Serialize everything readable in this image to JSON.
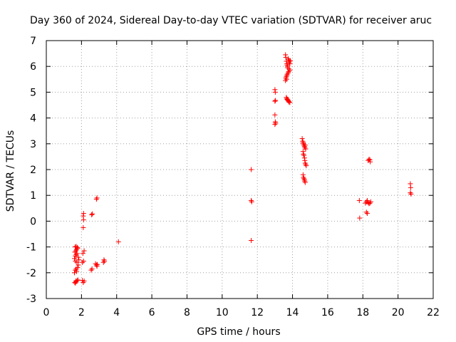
{
  "chart_data": {
    "type": "scatter",
    "title": "Day 360 of 2024, Sidereal Day-to-day VTEC variation (SDTVAR) for receiver aruc",
    "xlabel": "GPS time / hours",
    "ylabel": "SDTVAR / TECUs",
    "xlim": [
      0,
      22
    ],
    "ylim": [
      -3,
      7
    ],
    "xticks": [
      "0",
      "2",
      "4",
      "6",
      "8",
      "10",
      "12",
      "14",
      "16",
      "18",
      "20",
      "22"
    ],
    "yticks": [
      "-3",
      "-2",
      "-1",
      "0",
      "1",
      "2",
      "3",
      "4",
      "5",
      "6",
      "7"
    ],
    "grid": true,
    "marker": "+",
    "color": "#ff0000",
    "series": [
      {
        "name": "SDTVAR",
        "points": [
          [
            1.65,
            -2.4
          ],
          [
            1.7,
            -2.35
          ],
          [
            1.75,
            -2.3
          ],
          [
            1.8,
            -2.28
          ],
          [
            1.62,
            -2.38
          ],
          [
            1.68,
            -2.32
          ],
          [
            1.6,
            -2.0
          ],
          [
            1.65,
            -1.9
          ],
          [
            1.7,
            -1.85
          ],
          [
            1.72,
            -1.95
          ],
          [
            1.78,
            -1.8
          ],
          [
            1.82,
            -1.7
          ],
          [
            1.6,
            -1.45
          ],
          [
            1.65,
            -1.35
          ],
          [
            1.7,
            -1.3
          ],
          [
            1.75,
            -1.25
          ],
          [
            1.62,
            -1.2
          ],
          [
            1.68,
            -1.15
          ],
          [
            1.72,
            -1.1
          ],
          [
            1.78,
            -1.05
          ],
          [
            1.64,
            -1.0
          ],
          [
            1.7,
            -0.98
          ],
          [
            1.76,
            -1.02
          ],
          [
            1.82,
            -1.4
          ],
          [
            1.85,
            -1.5
          ],
          [
            1.66,
            -1.55
          ],
          [
            1.74,
            -1.6
          ],
          [
            2.05,
            -2.3
          ],
          [
            2.1,
            -2.38
          ],
          [
            2.15,
            -2.32
          ],
          [
            2.05,
            -1.6
          ],
          [
            2.12,
            -1.55
          ],
          [
            2.08,
            -1.25
          ],
          [
            2.15,
            -1.15
          ],
          [
            2.1,
            -0.25
          ],
          [
            2.12,
            0.05
          ],
          [
            2.1,
            0.2
          ],
          [
            2.12,
            0.3
          ],
          [
            2.55,
            -1.9
          ],
          [
            2.6,
            -1.85
          ],
          [
            2.58,
            0.25
          ],
          [
            2.62,
            0.28
          ],
          [
            2.8,
            -1.65
          ],
          [
            2.85,
            -1.7
          ],
          [
            2.88,
            -1.75
          ],
          [
            2.9,
            -1.68
          ],
          [
            2.85,
            0.85
          ],
          [
            2.88,
            0.9
          ],
          [
            3.25,
            -1.6
          ],
          [
            3.3,
            -1.55
          ],
          [
            3.28,
            -1.5
          ],
          [
            4.1,
            -0.8
          ],
          [
            11.65,
            2.0
          ],
          [
            11.65,
            0.8
          ],
          [
            11.68,
            0.75
          ],
          [
            11.65,
            -0.75
          ],
          [
            13.0,
            5.1
          ],
          [
            13.02,
            5.0
          ],
          [
            13.0,
            4.65
          ],
          [
            13.03,
            4.68
          ],
          [
            13.0,
            4.12
          ],
          [
            13.02,
            3.85
          ],
          [
            13.04,
            3.8
          ],
          [
            13.0,
            3.75
          ],
          [
            13.6,
            6.45
          ],
          [
            13.62,
            6.35
          ],
          [
            13.65,
            6.2
          ],
          [
            13.68,
            6.1
          ],
          [
            13.7,
            6.05
          ],
          [
            13.72,
            6.0
          ],
          [
            13.75,
            6.3
          ],
          [
            13.78,
            6.25
          ],
          [
            13.8,
            6.15
          ],
          [
            13.82,
            6.2
          ],
          [
            13.85,
            6.1
          ],
          [
            13.88,
            6.22
          ],
          [
            13.72,
            5.95
          ],
          [
            13.8,
            5.9
          ],
          [
            13.85,
            5.85
          ],
          [
            13.78,
            5.8
          ],
          [
            13.75,
            5.75
          ],
          [
            13.7,
            5.7
          ],
          [
            13.68,
            5.65
          ],
          [
            13.65,
            5.6
          ],
          [
            13.62,
            5.55
          ],
          [
            13.6,
            5.45
          ],
          [
            13.66,
            5.5
          ],
          [
            13.65,
            4.8
          ],
          [
            13.68,
            4.75
          ],
          [
            13.7,
            4.72
          ],
          [
            13.72,
            4.7
          ],
          [
            13.75,
            4.68
          ],
          [
            13.78,
            4.65
          ],
          [
            13.8,
            4.62
          ],
          [
            13.85,
            4.6
          ],
          [
            14.55,
            3.2
          ],
          [
            14.58,
            3.1
          ],
          [
            14.6,
            3.05
          ],
          [
            14.62,
            3.0
          ],
          [
            14.65,
            2.95
          ],
          [
            14.68,
            2.9
          ],
          [
            14.7,
            2.85
          ],
          [
            14.72,
            2.95
          ],
          [
            14.75,
            2.8
          ],
          [
            14.6,
            2.7
          ],
          [
            14.62,
            2.6
          ],
          [
            14.65,
            2.55
          ],
          [
            14.68,
            2.45
          ],
          [
            14.7,
            2.35
          ],
          [
            14.72,
            2.25
          ],
          [
            14.75,
            2.2
          ],
          [
            14.78,
            2.15
          ],
          [
            14.6,
            1.8
          ],
          [
            14.62,
            1.7
          ],
          [
            14.65,
            1.65
          ],
          [
            14.68,
            1.6
          ],
          [
            14.7,
            1.55
          ],
          [
            14.72,
            1.5
          ],
          [
            17.8,
            0.8
          ],
          [
            17.82,
            0.12
          ],
          [
            18.15,
            0.7
          ],
          [
            18.2,
            0.75
          ],
          [
            18.25,
            0.8
          ],
          [
            18.3,
            0.72
          ],
          [
            18.35,
            0.68
          ],
          [
            18.4,
            0.7
          ],
          [
            18.45,
            0.75
          ],
          [
            18.2,
            0.35
          ],
          [
            18.25,
            0.3
          ],
          [
            18.3,
            2.35
          ],
          [
            18.35,
            2.4
          ],
          [
            18.4,
            2.38
          ],
          [
            18.42,
            2.3
          ],
          [
            20.7,
            1.45
          ],
          [
            20.72,
            1.3
          ],
          [
            20.7,
            1.1
          ],
          [
            20.74,
            1.05
          ]
        ]
      }
    ]
  }
}
